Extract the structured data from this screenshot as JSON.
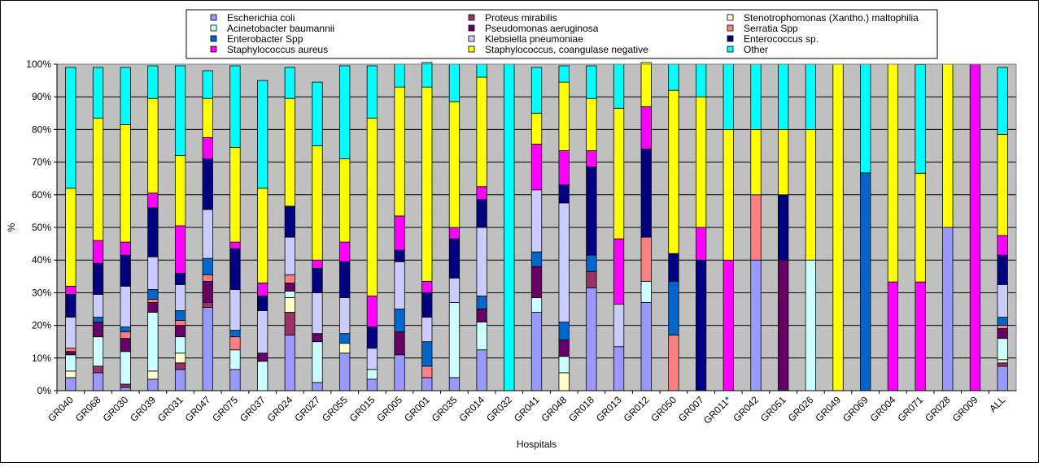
{
  "chart_data": {
    "type": "bar",
    "stacked": true,
    "percent": true,
    "xlabel": "Hospitals",
    "ylabel": "%",
    "ylim": [
      0,
      100
    ],
    "yticks": [
      "0%",
      "10%",
      "20%",
      "30%",
      "40%",
      "50%",
      "60%",
      "70%",
      "80%",
      "90%",
      "100%"
    ],
    "grid": true,
    "legend_position": "top",
    "plot_background": "#c0c0c0",
    "categories": [
      "GR040",
      "GR068",
      "GR030",
      "GR039",
      "GR031",
      "GR047",
      "GR075",
      "GR037",
      "GR024",
      "GR027",
      "GR055",
      "GR015",
      "GR005",
      "GR001",
      "GR035",
      "GR014",
      "GR032",
      "GR041",
      "GR048",
      "GR018",
      "GR013",
      "GR012",
      "GR050",
      "GR007",
      "GR011*",
      "GR042",
      "GR051",
      "GR026",
      "GR049",
      "GR069",
      "GR004",
      "GR071",
      "GR028",
      "GR009",
      "ALL"
    ],
    "series": [
      {
        "name": "Escherichia coli",
        "color": "#9999ff",
        "values": [
          4,
          5.5,
          1,
          3.5,
          6.5,
          25.5,
          6.5,
          0,
          17,
          2.5,
          11.5,
          3.5,
          11,
          4,
          4,
          12.5,
          0,
          24,
          0,
          31.5,
          13.5,
          27,
          0,
          0,
          0,
          40,
          0,
          0,
          0,
          0,
          0,
          0,
          50,
          0,
          7.5
        ]
      },
      {
        "name": "Proteus mirabilis",
        "color": "#993366",
        "values": [
          0,
          2,
          1,
          0,
          2,
          1.5,
          0,
          0,
          7,
          0,
          0,
          0,
          0,
          0,
          0,
          0,
          0,
          0,
          0,
          5,
          0,
          0,
          0,
          0,
          0,
          0,
          0,
          0,
          0,
          0,
          0,
          0,
          0,
          0,
          1
        ]
      },
      {
        "name": "Stenotrophomonas (Xantho.) maltophilia",
        "color": "#ffffcc",
        "values": [
          2,
          0,
          0,
          2.5,
          3,
          0,
          0,
          0,
          4.5,
          0,
          3,
          0,
          0,
          0,
          0,
          0,
          0,
          0,
          5.5,
          0,
          0,
          0,
          0,
          0,
          0,
          0,
          0,
          0,
          0,
          0,
          0,
          0,
          0,
          0,
          1
        ]
      },
      {
        "name": "Acinetobacter baumannii",
        "color": "#ccffff",
        "values": [
          5,
          9,
          10,
          18,
          5,
          0,
          6,
          9,
          2,
          12.5,
          0,
          3,
          0,
          0,
          23,
          8.5,
          0,
          4.5,
          5,
          0,
          0,
          6.5,
          0,
          0,
          0,
          0,
          0,
          40,
          0,
          0,
          0,
          0,
          0,
          0,
          6.5
        ]
      },
      {
        "name": "Pseudomonas aeruginosa",
        "color": "#660066",
        "values": [
          1,
          4.5,
          4,
          3,
          3.5,
          6.5,
          0,
          2.5,
          2.5,
          2.5,
          0,
          0,
          7,
          0,
          0,
          4,
          0,
          9.5,
          5,
          0,
          0,
          0,
          0,
          0,
          0,
          0,
          40,
          0,
          0,
          0,
          0,
          0,
          0,
          0,
          3
        ]
      },
      {
        "name": "Serratia Spp",
        "color": "#ff8080",
        "values": [
          1,
          0,
          2,
          1,
          1.5,
          2,
          4,
          0,
          2.5,
          0,
          0,
          0,
          0,
          3.5,
          0,
          0,
          0,
          0,
          0,
          0,
          0,
          13.5,
          17,
          0,
          0,
          20,
          0,
          0,
          0,
          0,
          0,
          0,
          0,
          0,
          1
        ]
      },
      {
        "name": "Enterobacter Spp",
        "color": "#0066cc",
        "values": [
          0,
          1.5,
          1.5,
          3,
          3,
          5,
          2,
          0,
          0,
          0,
          3,
          0,
          7,
          7.5,
          0,
          4,
          0,
          4.5,
          5.5,
          5,
          0,
          0,
          16.5,
          0,
          0,
          0,
          0,
          0,
          0,
          66.7,
          0,
          0,
          0,
          0,
          2.5
        ]
      },
      {
        "name": "Klebsiella pneumoniae",
        "color": "#ccccff",
        "values": [
          9.5,
          7,
          12.5,
          10,
          8,
          15,
          12.5,
          13,
          11.5,
          12.5,
          11,
          6.5,
          14.5,
          7.5,
          7.5,
          21,
          0,
          19,
          36.5,
          0,
          13,
          0,
          0,
          0,
          0,
          0,
          0,
          0,
          0,
          0,
          0,
          0,
          0,
          0,
          10
        ]
      },
      {
        "name": "Enterococcus sp.",
        "color": "#000080",
        "values": [
          7,
          9.5,
          9.5,
          15,
          3.5,
          15.5,
          12.5,
          4.5,
          9.5,
          7.5,
          11,
          6.5,
          3.5,
          7.5,
          12,
          8.5,
          0,
          0,
          5.5,
          27,
          0,
          27,
          8.5,
          40,
          0,
          0,
          20,
          0,
          0,
          0,
          0,
          0,
          0,
          0,
          9
        ]
      },
      {
        "name": "Staphylococcus aureus",
        "color": "#ff00ff",
        "values": [
          2.5,
          7,
          4,
          4.5,
          14.5,
          6.5,
          2,
          4,
          0,
          2.5,
          6,
          9.5,
          10.5,
          3.5,
          3.5,
          4,
          0,
          14,
          10.5,
          5,
          20,
          13,
          0,
          10,
          40,
          0,
          0,
          0,
          0,
          0,
          33.3,
          33.3,
          0,
          100,
          6
        ]
      },
      {
        "name": "Staphylococcus, coangulase negative",
        "color": "#ffff00",
        "values": [
          30,
          37.5,
          36,
          29,
          21.5,
          12,
          29,
          29,
          33,
          35,
          25.5,
          54.5,
          39.5,
          59.5,
          38.5,
          33.5,
          0,
          9.5,
          21,
          16,
          40,
          13.5,
          50,
          40,
          40,
          20,
          20,
          40,
          100,
          0,
          66.7,
          33.3,
          50,
          0,
          31
        ]
      },
      {
        "name": "Other",
        "color": "#00ffff",
        "values": [
          37,
          15.5,
          17.5,
          10,
          27.5,
          8.5,
          25,
          33,
          9.5,
          19.5,
          28.5,
          16,
          7,
          7.5,
          11.5,
          4,
          100,
          14,
          5,
          10,
          13.5,
          0,
          8,
          10,
          20,
          20,
          20,
          20,
          0,
          33.3,
          0,
          33.3,
          0,
          0,
          20.5
        ]
      }
    ]
  }
}
